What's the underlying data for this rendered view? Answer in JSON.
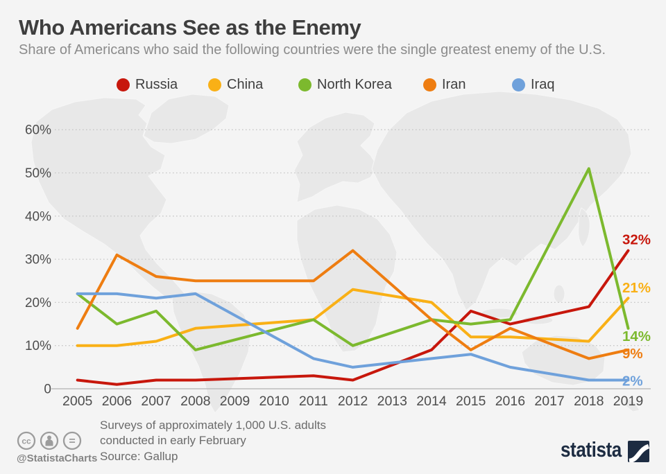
{
  "header": {
    "title": "Who Americans See as the Enemy",
    "subtitle": "Share of Americans who said the following countries were the single greatest enemy of the U.S."
  },
  "chart_data": {
    "type": "line",
    "title": "Who Americans See as the Enemy",
    "xlabel": "",
    "ylabel": "",
    "x_survey_years": [
      2005,
      2006,
      2007,
      2008,
      2011,
      2012,
      2014,
      2015,
      2016,
      2018,
      2019
    ],
    "x_axis_tick_labels": [
      "2005",
      "2006",
      "2007",
      "2008",
      "2009",
      "2010",
      "2011",
      "2012",
      "2013",
      "2014",
      "2015",
      "2016",
      "2017",
      "2018",
      "2019"
    ],
    "y_axis_ticks": [
      {
        "label": "0",
        "value": 0
      },
      {
        "label": "10%",
        "value": 10
      },
      {
        "label": "20%",
        "value": 20
      },
      {
        "label": "30%",
        "value": 30
      },
      {
        "label": "40%",
        "value": 40
      },
      {
        "label": "50%",
        "value": 50
      },
      {
        "label": "60%",
        "value": 60
      }
    ],
    "ylim": [
      0,
      60
    ],
    "grid": "horizontal-dotted",
    "legend_position": "top",
    "background": "light gray world map",
    "series": [
      {
        "name": "Russia",
        "color": "#c7170c",
        "end_label": "32%",
        "values": [
          2,
          1,
          2,
          2,
          3,
          2,
          9,
          18,
          15,
          19,
          32
        ]
      },
      {
        "name": "China",
        "color": "#f9b016",
        "end_label": "21%",
        "values": [
          10,
          10,
          11,
          14,
          16,
          23,
          20,
          12,
          12,
          11,
          21
        ]
      },
      {
        "name": "North Korea",
        "color": "#7cb92e",
        "end_label": "14%",
        "values": [
          22,
          15,
          18,
          9,
          16,
          10,
          16,
          15,
          16,
          51,
          14
        ]
      },
      {
        "name": "Iran",
        "color": "#ee7d11",
        "end_label": "9%",
        "values": [
          14,
          31,
          26,
          25,
          25,
          32,
          16,
          9,
          14,
          7,
          9
        ]
      },
      {
        "name": "Iraq",
        "color": "#6fa1db",
        "end_label": "2%",
        "values": [
          22,
          22,
          21,
          22,
          7,
          5,
          7,
          8,
          5,
          2,
          2
        ]
      }
    ]
  },
  "footer": {
    "license_icons": [
      "cc-icon",
      "attribution-person-icon",
      "equals-icon"
    ],
    "handle": "@StatistaCharts",
    "note_line1": "Surveys of approximately 1,000 U.S. adults",
    "note_line2": "conducted in early February",
    "source": "Source: Gallup",
    "brand": "statista"
  }
}
